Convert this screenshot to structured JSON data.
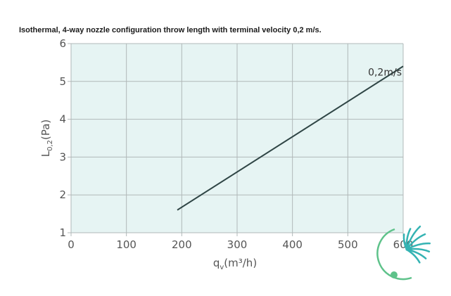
{
  "caption": "Isothermal, 4-way nozzle configuration throw length with terminal velocity 0,2 m/s.",
  "colors": {
    "plot_background": "#e6f4f3",
    "grid": "#b0b8b8",
    "series_line": "#2f4545",
    "logo_teal": "#34b3b3",
    "logo_green": "#5ec28a"
  },
  "logo": {
    "icon": "brand-logo-icon"
  },
  "chart_data": {
    "type": "line",
    "title": "Isothermal, 4-way nozzle configuration throw length with terminal velocity 0,2 m/s.",
    "xlabel": "q_v(m³/h)",
    "xlabel_parts": {
      "main": "q",
      "sub": "v",
      "rest": "(m³/h)"
    },
    "ylabel": "L_0,2(Pa)",
    "ylabel_parts": {
      "main": "L",
      "sub": "0,2",
      "rest": "(Pa)"
    },
    "xlim": [
      0,
      600
    ],
    "ylim": [
      1,
      6
    ],
    "xticks": [
      "0",
      "100",
      "200",
      "300",
      "400",
      "500",
      "600"
    ],
    "yticks": [
      "1",
      "2",
      "3",
      "4",
      "5",
      "6"
    ],
    "grid": true,
    "series": [
      {
        "name": "0,2m/s",
        "x": [
          192,
          600
        ],
        "y": [
          1.6,
          5.4
        ]
      }
    ]
  }
}
